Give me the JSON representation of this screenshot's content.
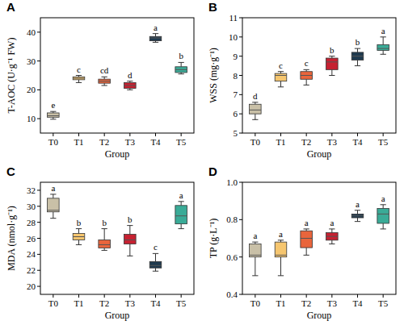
{
  "chart_data": [
    {
      "type": "box",
      "title": "A",
      "x_label": "Group",
      "y_label": "T-AOC (U·g⁻¹ FW)",
      "categories": [
        "T0",
        "T1",
        "T2",
        "T3",
        "T4",
        "T5"
      ],
      "colors": [
        "#c9c0a7",
        "#f6c66f",
        "#e9653c",
        "#c62131",
        "#1f3a4f",
        "#3aab97"
      ],
      "min": [
        9.8,
        22.5,
        21.5,
        20.0,
        36.5,
        25.5
      ],
      "q1": [
        10.5,
        23.5,
        22.3,
        20.5,
        37.0,
        26.0
      ],
      "median": [
        11.0,
        24.0,
        23.0,
        21.5,
        38.0,
        27.0
      ],
      "q3": [
        12.0,
        24.5,
        23.7,
        22.5,
        38.5,
        28.0
      ],
      "max": [
        12.5,
        25.0,
        24.5,
        23.0,
        39.5,
        29.5
      ],
      "annotations": [
        "e",
        "c",
        "cd",
        "d",
        "a",
        "b"
      ],
      "ylim": [
        5,
        45
      ],
      "yticks": [
        10,
        20,
        30,
        40
      ]
    },
    {
      "type": "box",
      "title": "B",
      "x_label": "Group",
      "y_label": "WSS (mg·g⁻¹)",
      "categories": [
        "T0",
        "T1",
        "T2",
        "T3",
        "T4",
        "T5"
      ],
      "colors": [
        "#c9c0a7",
        "#f6c66f",
        "#e9653c",
        "#c62131",
        "#1f3a4f",
        "#3aab97"
      ],
      "min": [
        5.7,
        7.4,
        7.5,
        8.0,
        8.5,
        9.1
      ],
      "q1": [
        6.0,
        7.7,
        7.8,
        8.3,
        8.8,
        9.3
      ],
      "median": [
        6.2,
        8.0,
        8.0,
        8.7,
        9.0,
        9.4
      ],
      "q3": [
        6.5,
        8.1,
        8.2,
        8.9,
        9.2,
        9.6
      ],
      "max": [
        6.6,
        8.2,
        8.3,
        9.0,
        9.4,
        10.0
      ],
      "annotations": [
        "d",
        "c",
        "c",
        "b",
        "b",
        "a"
      ],
      "ylim": [
        5,
        11
      ],
      "yticks": [
        5,
        6,
        7,
        8,
        9,
        10,
        11
      ]
    },
    {
      "type": "box",
      "title": "C",
      "x_label": "Group",
      "y_label": "MDA (nmol·g⁻¹)",
      "categories": [
        "T0",
        "T1",
        "T2",
        "T3",
        "T4",
        "T5"
      ],
      "colors": [
        "#c9c0a7",
        "#f6c66f",
        "#e9653c",
        "#c62131",
        "#1f3a4f",
        "#3aab97"
      ],
      "min": [
        28.5,
        25.2,
        24.5,
        23.8,
        21.9,
        27.2
      ],
      "q1": [
        29.3,
        25.8,
        24.8,
        25.3,
        22.3,
        27.8
      ],
      "median": [
        29.5,
        26.2,
        25.2,
        25.8,
        22.6,
        28.8
      ],
      "q3": [
        31.0,
        26.6,
        25.8,
        26.5,
        23.1,
        30.1
      ],
      "max": [
        31.5,
        27.2,
        27.2,
        27.6,
        24.1,
        30.6
      ],
      "annotations": [
        "a",
        "b",
        "b",
        "b",
        "c",
        "a"
      ],
      "ylim": [
        19,
        33
      ],
      "yticks": [
        20,
        22,
        24,
        26,
        28,
        30,
        32
      ]
    },
    {
      "type": "box",
      "title": "D",
      "x_label": "Group",
      "y_label": "TP (g·L⁻¹)",
      "categories": [
        "T0",
        "T1",
        "T2",
        "T3",
        "T4",
        "T5"
      ],
      "colors": [
        "#c9c0a7",
        "#f6c66f",
        "#e9653c",
        "#c62131",
        "#1f3a4f",
        "#3aab97"
      ],
      "min": [
        0.5,
        0.5,
        0.61,
        0.67,
        0.79,
        0.75
      ],
      "q1": [
        0.6,
        0.6,
        0.65,
        0.69,
        0.81,
        0.78
      ],
      "median": [
        0.61,
        0.61,
        0.7,
        0.71,
        0.82,
        0.83
      ],
      "q3": [
        0.67,
        0.68,
        0.74,
        0.73,
        0.83,
        0.86
      ],
      "max": [
        0.68,
        0.69,
        0.75,
        0.75,
        0.85,
        0.88
      ],
      "annotations": [
        "a",
        "a",
        "a",
        "a",
        "a",
        "a"
      ],
      "ylim": [
        0.4,
        1.0
      ],
      "yticks": [
        0.4,
        0.6,
        0.8,
        {
          "value": 1.0,
          "label": "1.0"
        }
      ]
    }
  ]
}
